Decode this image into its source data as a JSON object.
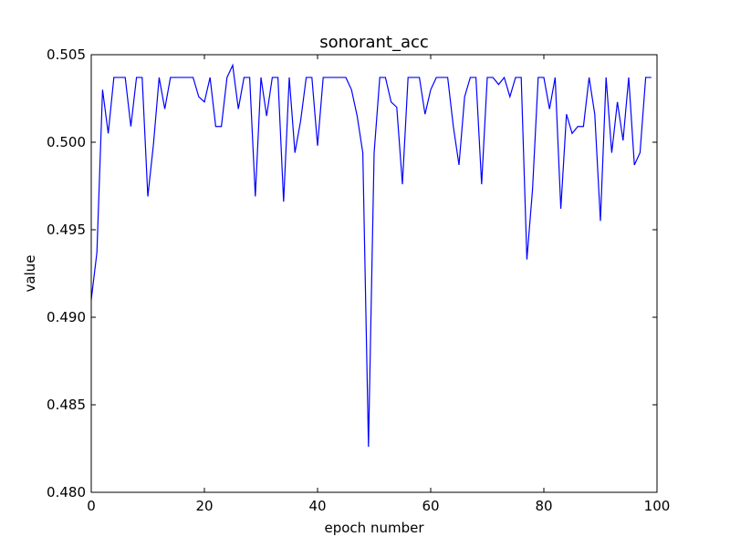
{
  "chart_data": {
    "type": "line",
    "title": "sonorant_acc",
    "xlabel": "epoch number",
    "ylabel": "value",
    "xlim": [
      0,
      100
    ],
    "ylim": [
      0.48,
      0.505
    ],
    "xticks": [
      0,
      20,
      40,
      60,
      80,
      100
    ],
    "xtick_labels": [
      "0",
      "20",
      "40",
      "60",
      "80",
      "100"
    ],
    "yticks": [
      0.48,
      0.485,
      0.49,
      0.495,
      0.5,
      0.505
    ],
    "ytick_labels": [
      "0.480",
      "0.485",
      "0.490",
      "0.495",
      "0.500",
      "0.505"
    ],
    "grid": false,
    "series": [
      {
        "color": "#0000ff",
        "x": [
          0,
          1,
          2,
          3,
          4,
          5,
          6,
          7,
          8,
          9,
          10,
          11,
          12,
          13,
          14,
          15,
          16,
          17,
          18,
          19,
          20,
          21,
          22,
          23,
          24,
          25,
          26,
          27,
          28,
          29,
          30,
          31,
          32,
          33,
          34,
          35,
          36,
          37,
          38,
          39,
          40,
          41,
          42,
          43,
          44,
          45,
          46,
          47,
          48,
          49,
          50,
          51,
          52,
          53,
          54,
          55,
          56,
          57,
          58,
          59,
          60,
          61,
          62,
          63,
          64,
          65,
          66,
          67,
          68,
          69,
          70,
          71,
          72,
          73,
          74,
          75,
          76,
          77,
          78,
          79,
          80,
          81,
          82,
          83,
          84,
          85,
          86,
          87,
          88,
          89,
          90,
          91,
          92,
          93,
          94,
          95,
          96,
          97,
          98,
          99
        ],
        "values": [
          0.491,
          0.4937,
          0.503,
          0.5005,
          0.5037,
          0.5037,
          0.5037,
          0.5009,
          0.5037,
          0.5037,
          0.4969,
          0.4999,
          0.5037,
          0.5019,
          0.5037,
          0.5037,
          0.5037,
          0.5037,
          0.5037,
          0.5026,
          0.5023,
          0.5037,
          0.5009,
          0.5009,
          0.5037,
          0.5044,
          0.5019,
          0.5037,
          0.5037,
          0.4969,
          0.5037,
          0.5015,
          0.5037,
          0.5037,
          0.4966,
          0.5037,
          0.4994,
          0.5012,
          0.5037,
          0.5037,
          0.4998,
          0.5037,
          0.5037,
          0.5037,
          0.5037,
          0.5037,
          0.503,
          0.5015,
          0.4994,
          0.4826,
          0.4994,
          0.5037,
          0.5037,
          0.5023,
          0.502,
          0.4976,
          0.5037,
          0.5037,
          0.5037,
          0.5016,
          0.503,
          0.5037,
          0.5037,
          0.5037,
          0.5009,
          0.4987,
          0.5026,
          0.5037,
          0.5037,
          0.4976,
          0.5037,
          0.5037,
          0.5033,
          0.5037,
          0.5026,
          0.5037,
          0.5037,
          0.4933,
          0.4973,
          0.5037,
          0.5037,
          0.5019,
          0.5037,
          0.4962,
          0.5016,
          0.5005,
          0.5009,
          0.5009,
          0.5037,
          0.5016,
          0.4955,
          0.5037,
          0.4994,
          0.5023,
          0.5001,
          0.5037,
          0.4987,
          0.4994,
          0.5037,
          0.5037
        ]
      }
    ]
  }
}
